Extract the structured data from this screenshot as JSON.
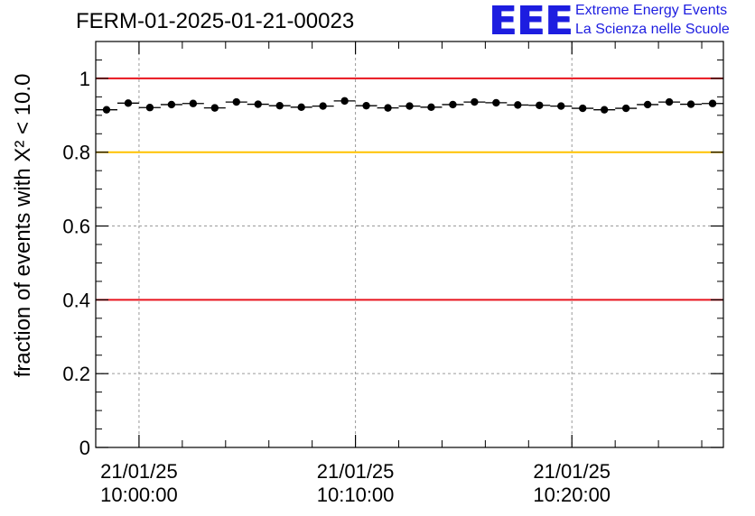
{
  "header": {
    "title": "FERM-01-2025-01-21-00023",
    "logo_text": "EEE",
    "logo_line1": "Extreme Energy Events",
    "logo_line2": "La Scienza nelle Scuole",
    "logo_color": "#1d1de0"
  },
  "chart_data": {
    "type": "scatter",
    "title": "FERM-01-2025-01-21-00023",
    "ylabel": "fraction of events with X² < 10.0",
    "ylim": [
      0,
      1.1
    ],
    "xlim_minutes": [
      -2,
      27
    ],
    "yticks": [
      {
        "value": 0,
        "label": "0"
      },
      {
        "value": 0.2,
        "label": "0.2"
      },
      {
        "value": 0.4,
        "label": "0.4"
      },
      {
        "value": 0.6,
        "label": "0.6"
      },
      {
        "value": 0.8,
        "label": "0.8"
      },
      {
        "value": 1,
        "label": "1"
      }
    ],
    "xticks": [
      {
        "minutes": 0,
        "date": "21/01/25",
        "time": "10:00:00"
      },
      {
        "minutes": 10,
        "date": "21/01/25",
        "time": "10:10:00"
      },
      {
        "minutes": 20,
        "date": "21/01/25",
        "time": "10:20:00"
      }
    ],
    "grid": true,
    "reference_lines": [
      {
        "y": 1.0,
        "color": "#e8141e"
      },
      {
        "y": 0.8,
        "color": "#ffc200"
      },
      {
        "y": 0.4,
        "color": "#e8141e"
      }
    ],
    "series": [
      {
        "x": [
          -1.5,
          -0.5,
          0.5,
          1.5,
          2.5,
          3.5,
          4.5,
          5.5,
          6.5,
          7.5,
          8.5,
          9.5,
          10.5,
          11.5,
          12.5,
          13.5,
          14.5,
          15.5,
          16.5,
          17.5,
          18.5,
          19.5,
          20.5,
          21.5,
          22.5,
          23.5,
          24.5,
          25.5,
          26.5
        ],
        "y": [
          0.915,
          0.933,
          0.921,
          0.929,
          0.932,
          0.92,
          0.936,
          0.93,
          0.926,
          0.922,
          0.925,
          0.939,
          0.926,
          0.92,
          0.925,
          0.922,
          0.929,
          0.936,
          0.934,
          0.928,
          0.927,
          0.925,
          0.919,
          0.915,
          0.919,
          0.929,
          0.936,
          0.93,
          0.932
        ],
        "color": "#000000"
      }
    ]
  }
}
